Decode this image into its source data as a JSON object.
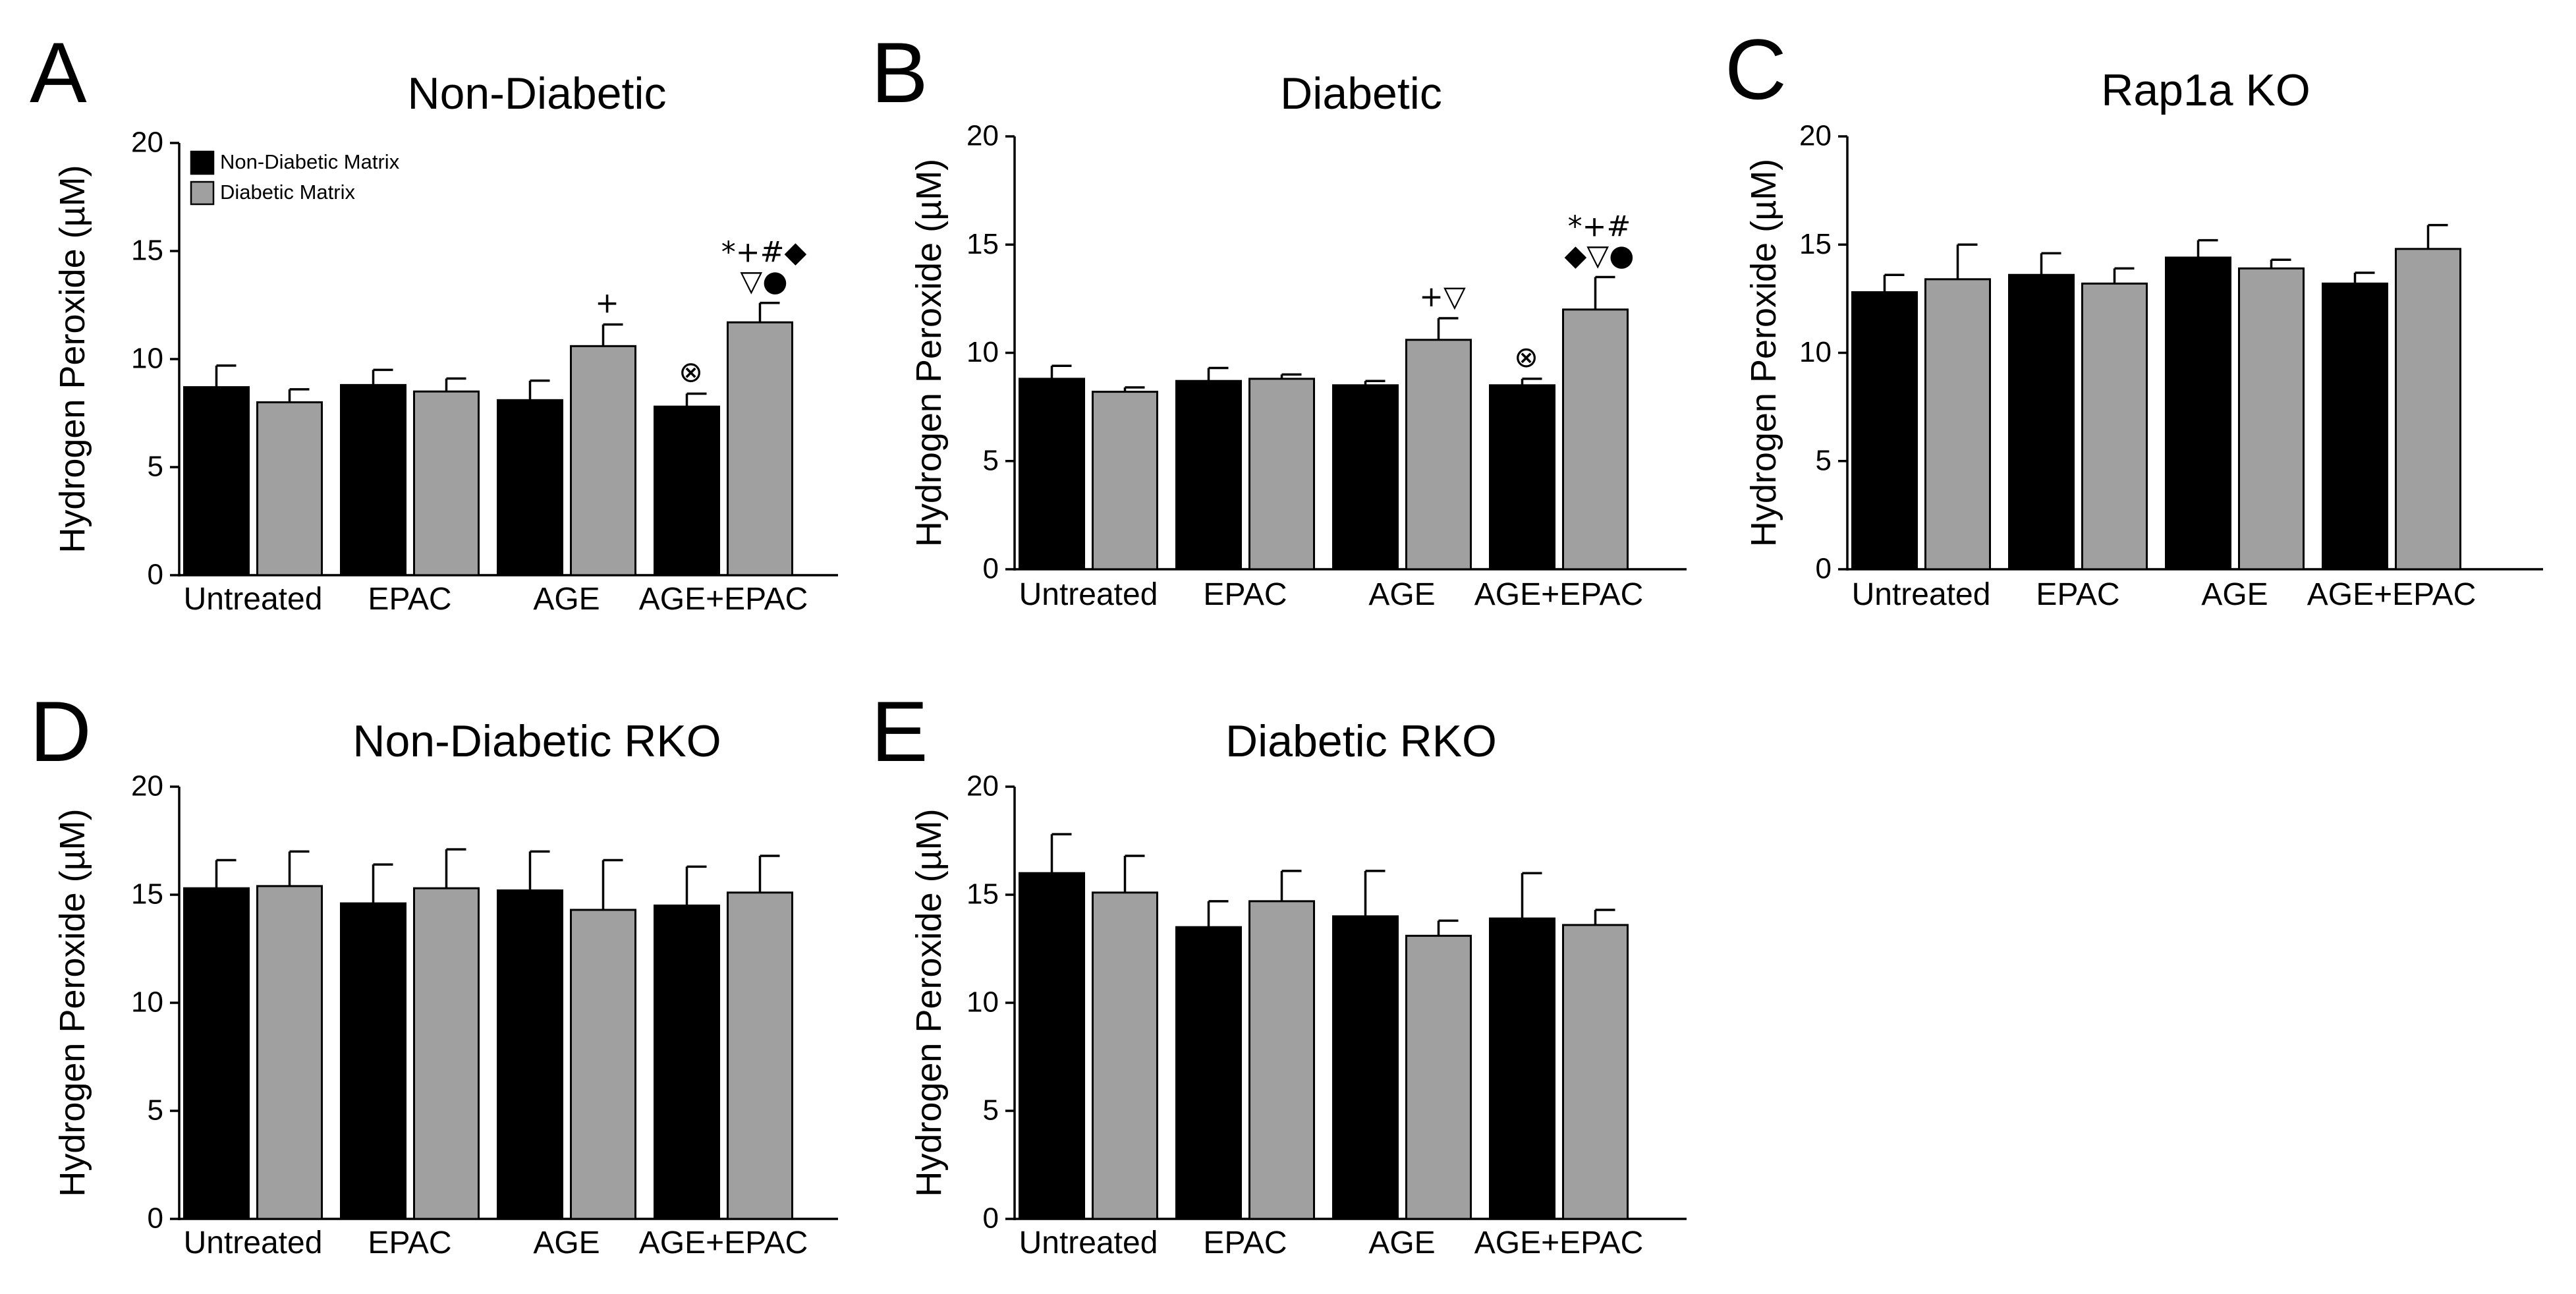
{
  "chart_data": [
    {
      "panel": "A",
      "type": "bar",
      "title": "Non-Diabetic",
      "ylabel": "Hydrogen Peroxide (µM)",
      "xlabel": "",
      "ylim": [
        0,
        20
      ],
      "yticks": [
        0,
        5,
        10,
        15,
        20
      ],
      "categories": [
        "Untreated",
        "EPAC",
        "AGE",
        "AGE+EPAC"
      ],
      "legend": {
        "position": "top-left"
      },
      "series": [
        {
          "name": "Non-Diabetic Matrix",
          "color": "#000000",
          "values": [
            8.7,
            8.8,
            8.1,
            7.8
          ],
          "errors": [
            1.0,
            0.7,
            0.9,
            0.6
          ]
        },
        {
          "name": "Diabetic Matrix",
          "color": "#a0a0a0",
          "values": [
            8.0,
            8.5,
            10.6,
            11.7
          ],
          "errors": [
            0.6,
            0.6,
            1.0,
            0.9
          ]
        }
      ],
      "annotations": [
        {
          "category": 2,
          "series": 1,
          "lines": [
            "+"
          ]
        },
        {
          "category": 3,
          "series": 0,
          "lines": [
            "⊗"
          ]
        },
        {
          "category": 3,
          "series": 1,
          "lines": [
            "*+#◆",
            "▽●"
          ]
        }
      ]
    },
    {
      "panel": "B",
      "type": "bar",
      "title": "Diabetic",
      "ylabel": "Hydrogen Peroxide (µM)",
      "xlabel": "",
      "ylim": [
        0,
        20
      ],
      "yticks": [
        0,
        5,
        10,
        15,
        20
      ],
      "categories": [
        "Untreated",
        "EPAC",
        "AGE",
        "AGE+EPAC"
      ],
      "series": [
        {
          "name": "Non-Diabetic Matrix",
          "color": "#000000",
          "values": [
            8.8,
            8.7,
            8.5,
            8.5
          ],
          "errors": [
            0.6,
            0.6,
            0.2,
            0.3
          ]
        },
        {
          "name": "Diabetic Matrix",
          "color": "#a0a0a0",
          "values": [
            8.2,
            8.8,
            10.6,
            12.0
          ],
          "errors": [
            0.2,
            0.2,
            1.0,
            1.5
          ]
        }
      ],
      "annotations": [
        {
          "category": 2,
          "series": 1,
          "lines": [
            "+▽"
          ]
        },
        {
          "category": 3,
          "series": 0,
          "lines": [
            "⊗"
          ]
        },
        {
          "category": 3,
          "series": 1,
          "lines": [
            "*+#",
            "◆▽●"
          ]
        }
      ]
    },
    {
      "panel": "C",
      "type": "bar",
      "title": "Rap1a KO",
      "ylabel": "Hydrogen Peroxide (µM)",
      "xlabel": "",
      "ylim": [
        0,
        20
      ],
      "yticks": [
        0,
        5,
        10,
        15,
        20
      ],
      "categories": [
        "Untreated",
        "EPAC",
        "AGE",
        "AGE+EPAC"
      ],
      "series": [
        {
          "name": "Non-Diabetic Matrix",
          "color": "#000000",
          "values": [
            12.8,
            13.6,
            14.4,
            13.2
          ],
          "errors": [
            0.8,
            1.0,
            0.8,
            0.5
          ]
        },
        {
          "name": "Diabetic Matrix",
          "color": "#a0a0a0",
          "values": [
            13.4,
            13.2,
            13.9,
            14.8
          ],
          "errors": [
            1.6,
            0.7,
            0.4,
            1.1
          ]
        }
      ],
      "annotations": []
    },
    {
      "panel": "D",
      "type": "bar",
      "title": "Non-Diabetic RKO",
      "ylabel": "Hydrogen Peroxide (µM)",
      "xlabel": "",
      "ylim": [
        0,
        20
      ],
      "yticks": [
        0,
        5,
        10,
        15,
        20
      ],
      "categories": [
        "Untreated",
        "EPAC",
        "AGE",
        "AGE+EPAC"
      ],
      "series": [
        {
          "name": "Non-Diabetic Matrix",
          "color": "#000000",
          "values": [
            15.3,
            14.6,
            15.2,
            14.5
          ],
          "errors": [
            1.3,
            1.8,
            1.8,
            1.8
          ]
        },
        {
          "name": "Diabetic Matrix",
          "color": "#a0a0a0",
          "values": [
            15.4,
            15.3,
            14.3,
            15.1
          ],
          "errors": [
            1.6,
            1.8,
            2.3,
            1.7
          ]
        }
      ],
      "annotations": []
    },
    {
      "panel": "E",
      "type": "bar",
      "title": "Diabetic RKO",
      "ylabel": "Hydrogen Peroxide (µM)",
      "xlabel": "",
      "ylim": [
        0,
        20
      ],
      "yticks": [
        0,
        5,
        10,
        15,
        20
      ],
      "categories": [
        "Untreated",
        "EPAC",
        "AGE",
        "AGE+EPAC"
      ],
      "series": [
        {
          "name": "Non-Diabetic Matrix",
          "color": "#000000",
          "values": [
            16.0,
            13.5,
            14.0,
            13.9
          ],
          "errors": [
            1.8,
            1.2,
            2.1,
            2.1
          ]
        },
        {
          "name": "Diabetic Matrix",
          "color": "#a0a0a0",
          "values": [
            15.1,
            14.7,
            13.1,
            13.6
          ],
          "errors": [
            1.7,
            1.4,
            0.7,
            0.7
          ]
        }
      ],
      "annotations": []
    }
  ]
}
